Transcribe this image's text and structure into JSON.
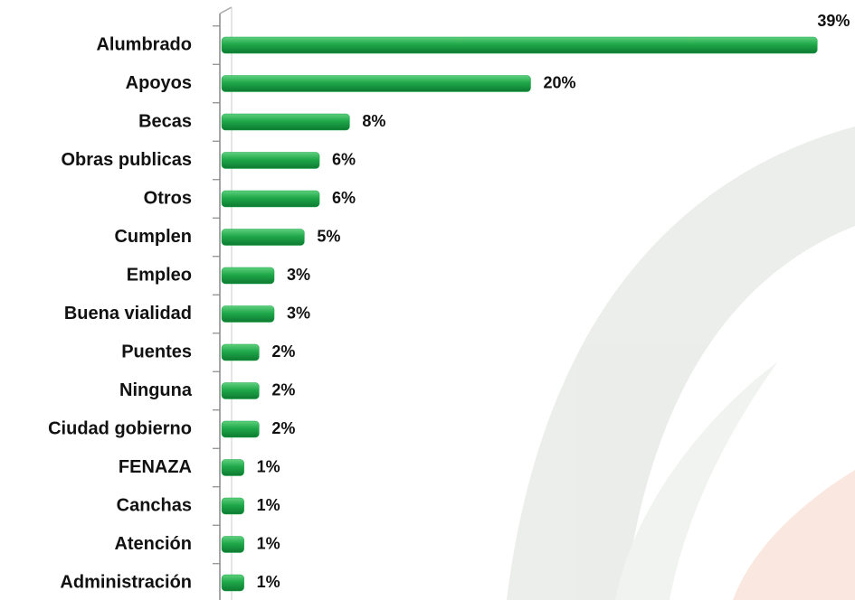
{
  "chart_data": {
    "type": "bar",
    "categories": [
      "Alumbrado",
      "Apoyos",
      "Becas",
      "Obras publicas",
      "Otros",
      "Cumplen",
      "Empleo",
      "Buena vialidad",
      "Puentes",
      "Ninguna",
      "Ciudad gobierno",
      "FENAZA",
      "Canchas",
      "Atención",
      "Administración"
    ],
    "values": [
      39,
      20,
      8,
      6,
      6,
      5,
      3,
      3,
      2,
      2,
      2,
      1,
      1,
      1,
      1
    ],
    "value_labels": [
      "39%",
      "20%",
      "8%",
      "6%",
      "6%",
      "5%",
      "3%",
      "3%",
      "2%",
      "2%",
      "2%",
      "1%",
      "1%",
      "1%",
      "1%"
    ],
    "color": "#1fa84a",
    "xlim": [
      0,
      40
    ]
  }
}
